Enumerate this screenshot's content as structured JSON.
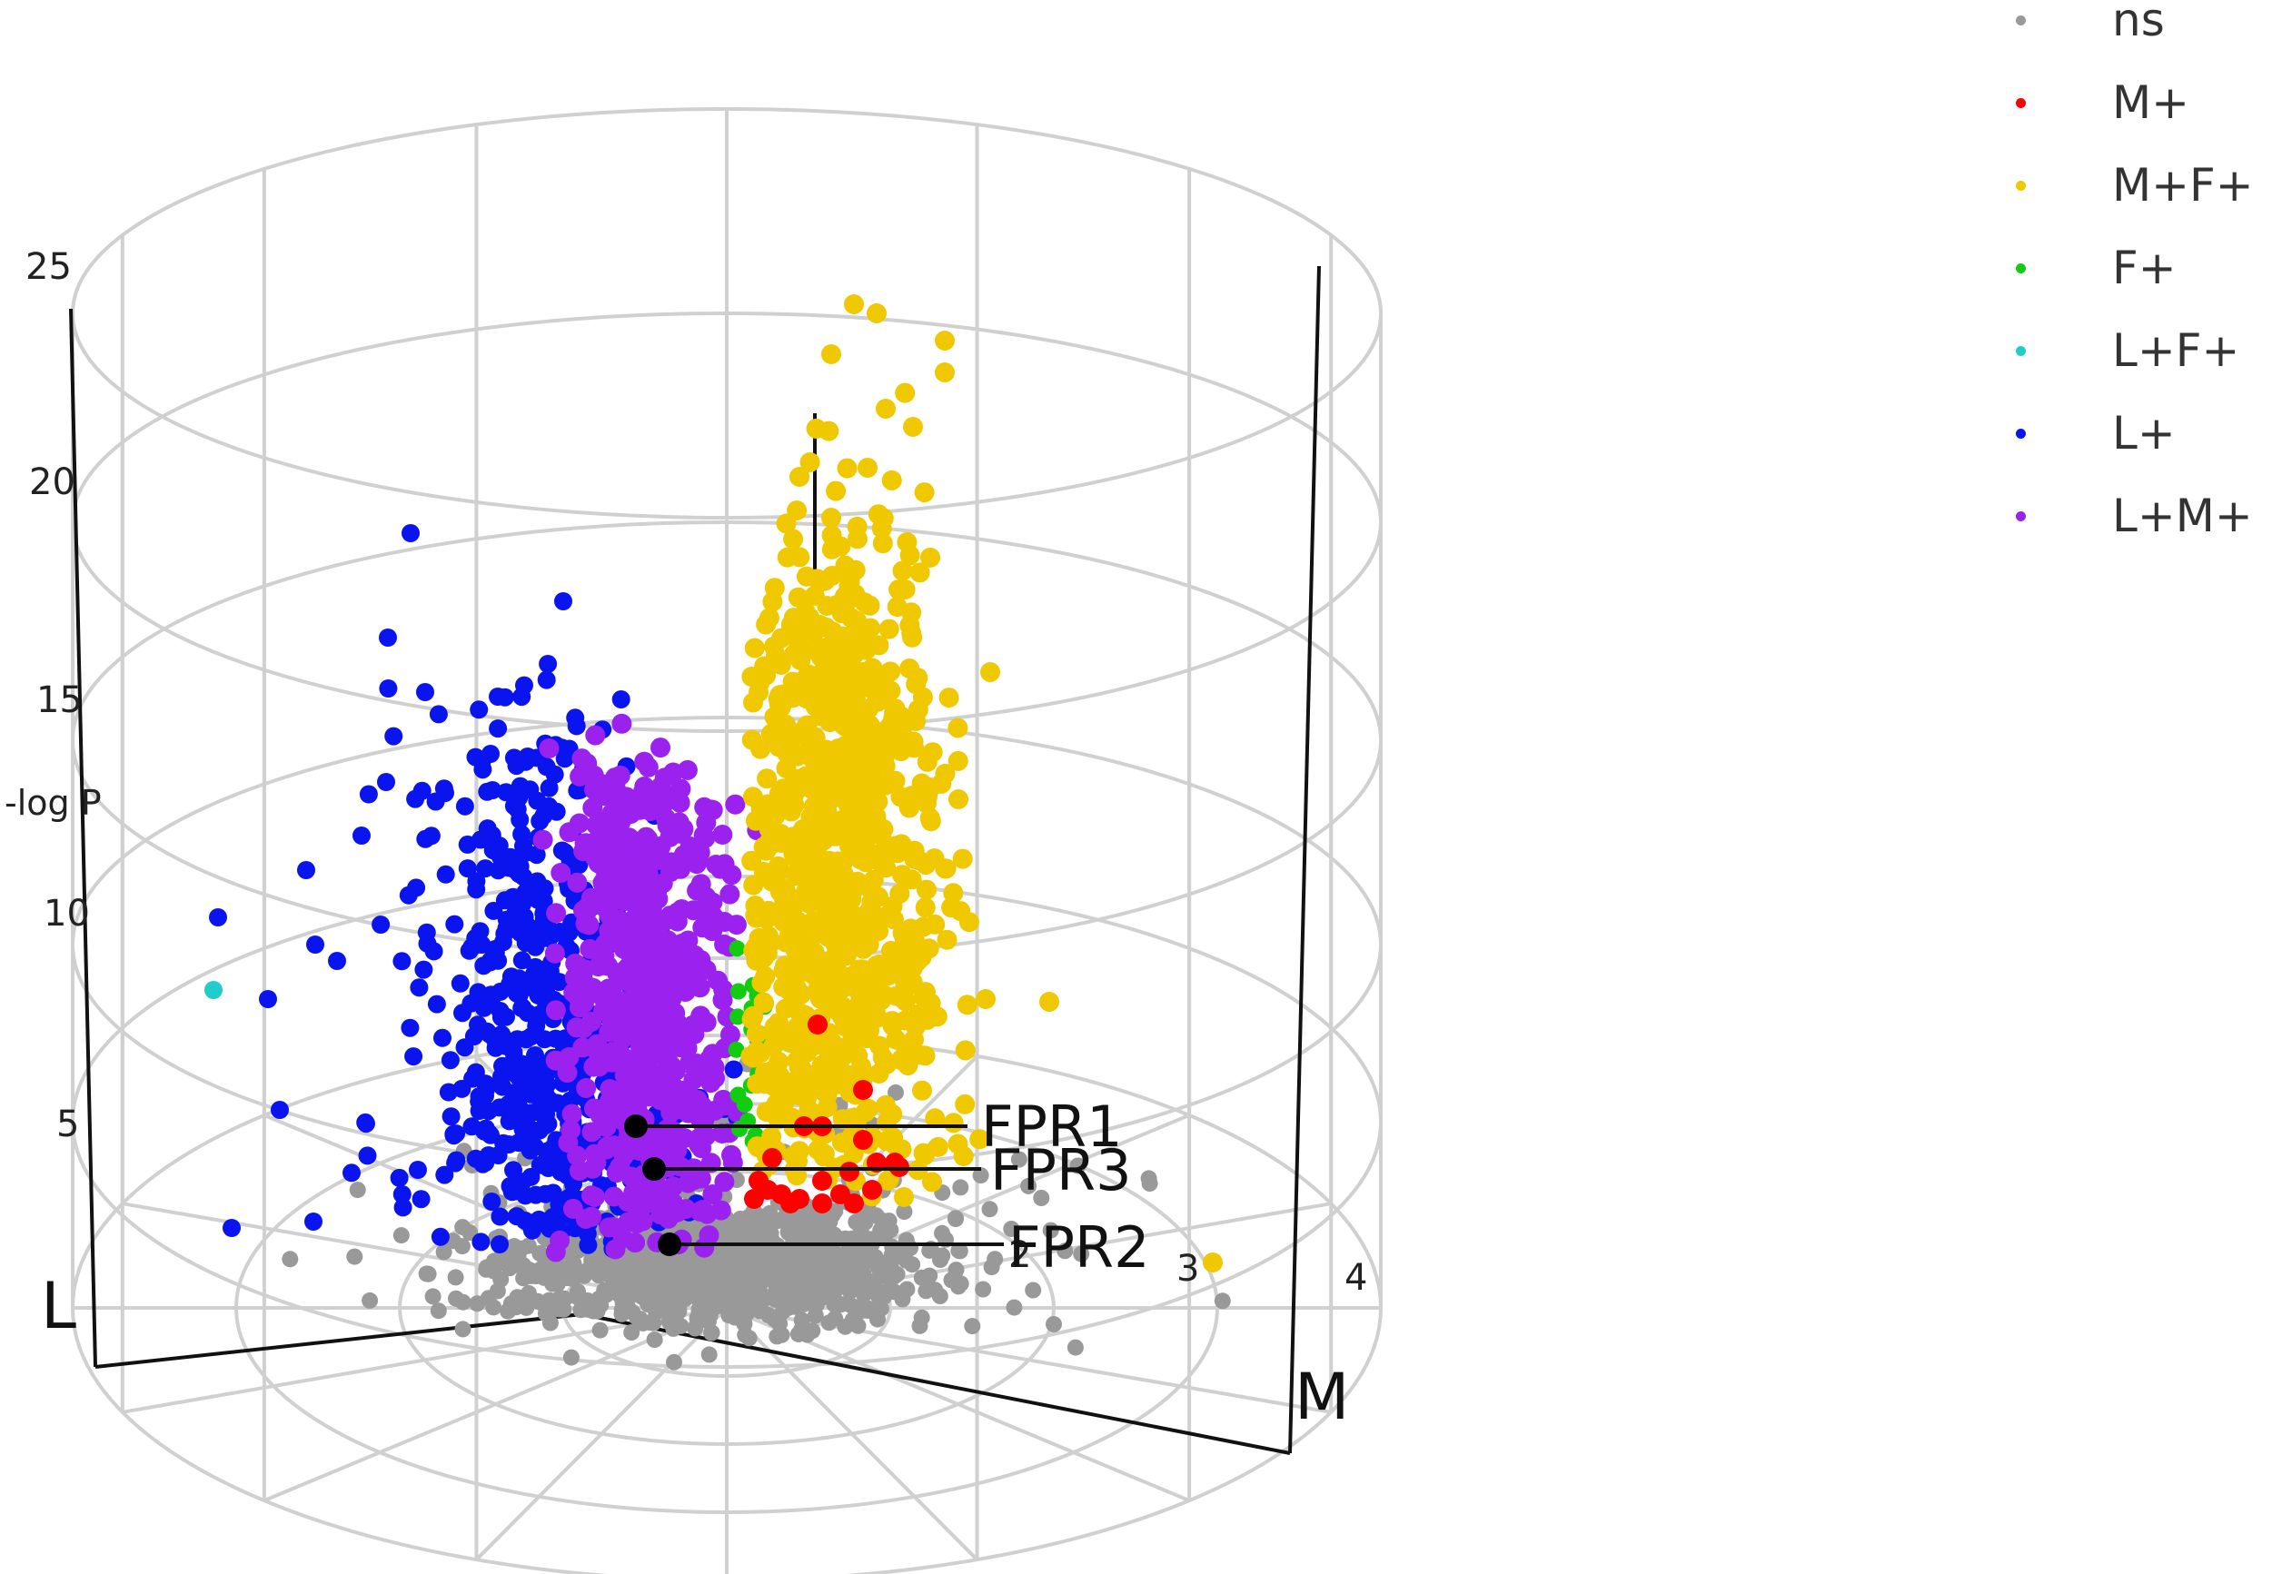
{
  "chart_data": {
    "type": "scatter",
    "projection": "3d-cylindrical",
    "z_axis_label": "-log P",
    "z_ticks": [
      "5",
      "10",
      "15",
      "20",
      "25"
    ],
    "radial_ticks": [
      "2",
      "3",
      "4"
    ],
    "axis_labels": {
      "L": "L",
      "M": "M"
    },
    "legend": {
      "placement": "top-right"
    },
    "series": [
      {
        "name": "ns",
        "color": "#999999"
      },
      {
        "name": "M+",
        "color": "#ff0000"
      },
      {
        "name": "M+F+",
        "color": "#f0c800"
      },
      {
        "name": "F+",
        "color": "#11cc11"
      },
      {
        "name": "L+F+",
        "color": "#22cccc"
      },
      {
        "name": "L+",
        "color": "#0a14ee"
      },
      {
        "name": "L+M+",
        "color": "#9b22ee"
      }
    ],
    "annotations": [
      {
        "label": "FPR1",
        "neglogP": 5.0
      },
      {
        "label": "FPR3",
        "neglogP": 4.0
      },
      {
        "label": "FPR2",
        "neglogP": 2.3
      }
    ],
    "grid": true
  }
}
